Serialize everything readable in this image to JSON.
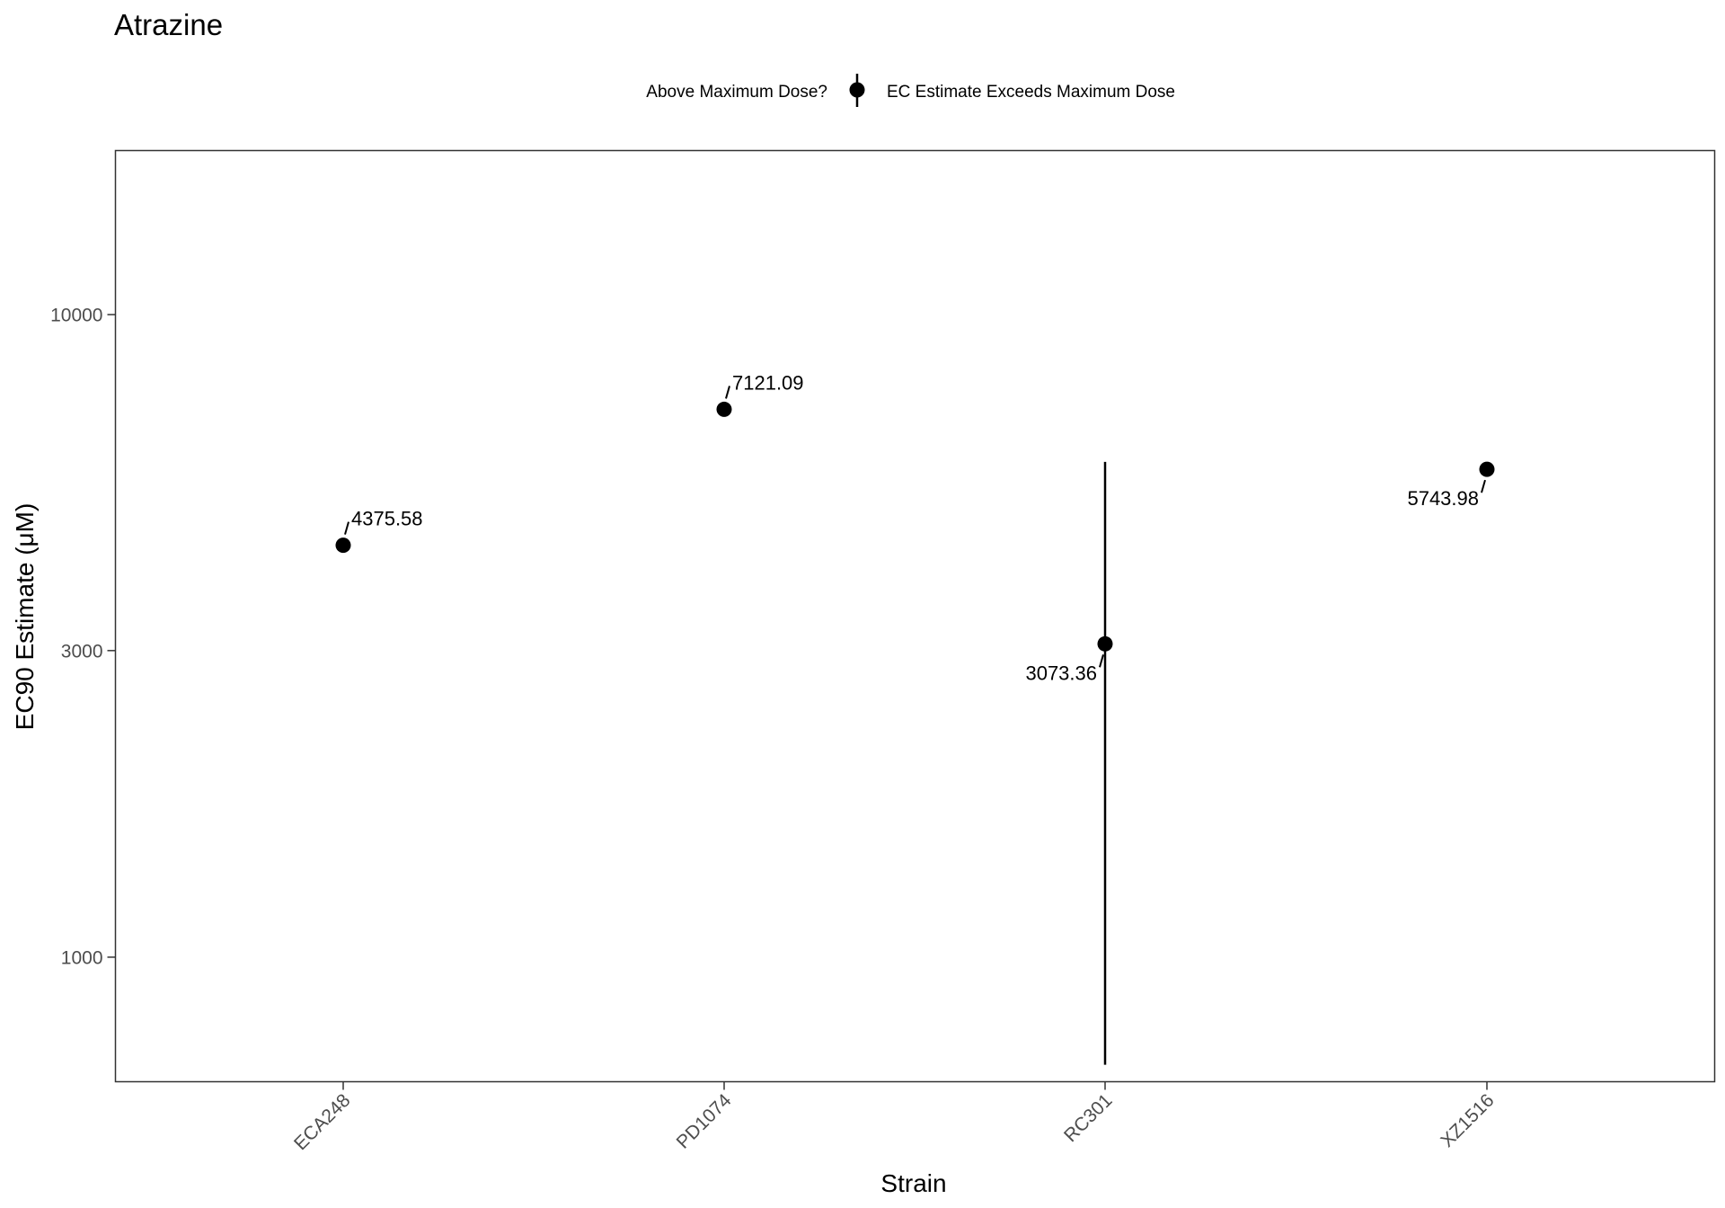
{
  "chart_data": {
    "type": "scatter",
    "title": "Atrazine",
    "xlabel": "Strain",
    "ylabel": "EC90 Estimate (μM)",
    "y_scale": "log",
    "ylim": [
      640,
      18000
    ],
    "y_ticks": [
      1000,
      3000,
      10000
    ],
    "y_tick_labels": [
      "1000",
      "3000",
      "10000"
    ],
    "categories": [
      "ECA248",
      "PD1074",
      "RC301",
      "XZ1516"
    ],
    "x_tick_rotation_deg": -45,
    "grid": false,
    "legend": {
      "position": "top",
      "title": "Above Maximum Dose?",
      "entries": [
        "EC Estimate Exceeds Maximum Dose"
      ]
    },
    "series": [
      {
        "name": "EC Estimate Exceeds Maximum Dose",
        "color": "#000000",
        "points": [
          {
            "x": "ECA248",
            "y": 4375.58,
            "label": "4375.58",
            "label_side": "above-right"
          },
          {
            "x": "PD1074",
            "y": 7121.09,
            "label": "7121.09",
            "label_side": "above-right"
          },
          {
            "x": "RC301",
            "y": 3073.36,
            "label": "3073.36",
            "label_side": "below-left",
            "error_low": 680,
            "error_high": 5900
          },
          {
            "x": "XZ1516",
            "y": 5743.98,
            "label": "5743.98",
            "label_side": "below-left"
          }
        ]
      }
    ]
  }
}
